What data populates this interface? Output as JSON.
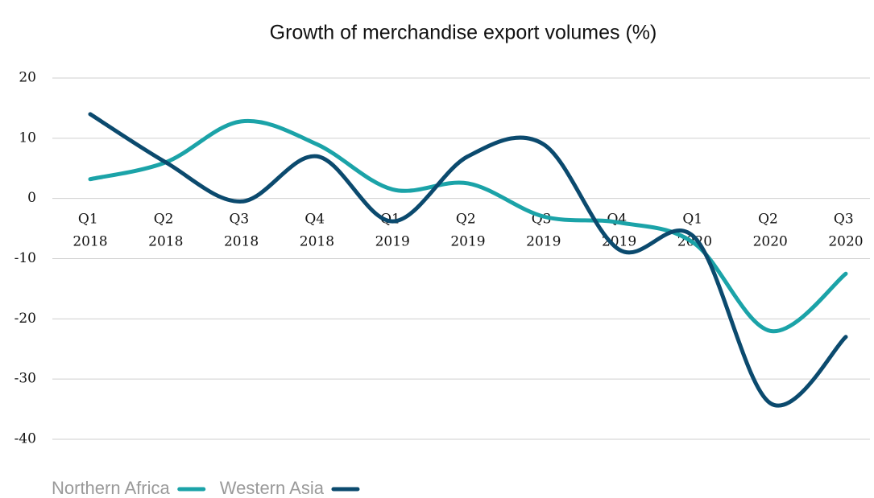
{
  "chart_data": {
    "type": "line",
    "title": "Growth of merchandise export volumes (%)",
    "categories": [
      "Q1 2018",
      "Q2 2018",
      "Q3 2018",
      "Q4 2018",
      "Q1 2019",
      "Q2 2019",
      "Q3 2019",
      "Q4 2019",
      "Q1 2020",
      "Q2 2020",
      "Q3 2020"
    ],
    "series": [
      {
        "name": "Northern Africa",
        "color": "#1ba3a8",
        "values": [
          3.2,
          6,
          12.8,
          9,
          1.5,
          2.5,
          -3,
          -4,
          -7.5,
          -22,
          -12.5
        ]
      },
      {
        "name": "Western Asia",
        "color": "#0b4a6e",
        "values": [
          14,
          6,
          -0.5,
          7,
          -3.8,
          7,
          9,
          -8.5,
          -6.5,
          -34,
          -23
        ]
      }
    ],
    "ylim": [
      -40,
      20
    ],
    "yticks": [
      -40,
      -30,
      -20,
      -10,
      0,
      10,
      20
    ],
    "grid": true,
    "smooth": true,
    "legend": "bottom-left"
  }
}
